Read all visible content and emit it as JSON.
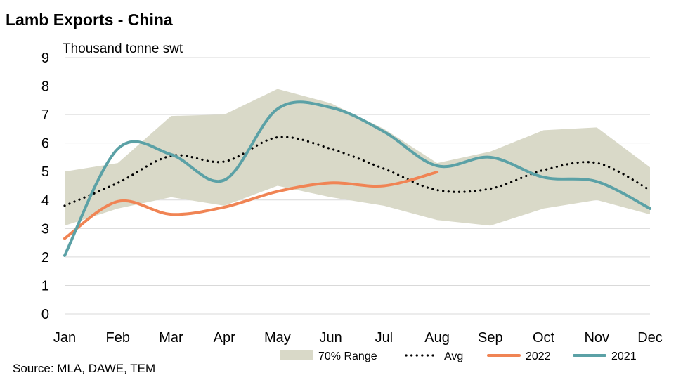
{
  "chart_data": {
    "type": "line",
    "title": "Lamb Exports - China",
    "ylabel": "Thousand tonne swt",
    "xlabel": "",
    "source": "Source: MLA, DAWE, TEM",
    "categories": [
      "Jan",
      "Feb",
      "Mar",
      "Apr",
      "May",
      "Jun",
      "Jul",
      "Aug",
      "Sep",
      "Oct",
      "Nov",
      "Dec"
    ],
    "ylim": [
      0,
      9
    ],
    "yticks": [
      0,
      1,
      2,
      3,
      4,
      5,
      6,
      7,
      8,
      9
    ],
    "grid": true,
    "legend_position": "bottom",
    "range": {
      "name": "70% Range",
      "lower": [
        3.1,
        3.7,
        4.1,
        3.8,
        4.5,
        4.1,
        3.8,
        3.3,
        3.1,
        3.7,
        4.0,
        3.5
      ],
      "upper": [
        5.0,
        5.3,
        6.95,
        7.0,
        7.9,
        7.4,
        6.5,
        5.3,
        5.7,
        6.45,
        6.55,
        5.15
      ],
      "color": "#d9d9c8"
    },
    "series": [
      {
        "name": "Avg",
        "style": "dotted",
        "color": "#000000",
        "values": [
          3.8,
          4.6,
          5.55,
          5.35,
          6.2,
          5.8,
          5.1,
          4.35,
          4.4,
          5.05,
          5.3,
          4.35
        ]
      },
      {
        "name": "2022",
        "style": "solid",
        "color": "#f08454",
        "values": [
          2.65,
          3.95,
          3.5,
          3.75,
          4.3,
          4.6,
          4.5,
          4.98,
          null,
          null,
          null,
          null
        ]
      },
      {
        "name": "2021",
        "style": "solid",
        "color": "#5ba1a6",
        "values": [
          2.05,
          5.8,
          5.6,
          4.7,
          7.2,
          7.25,
          6.4,
          5.2,
          5.5,
          4.8,
          4.65,
          3.7
        ]
      }
    ]
  }
}
